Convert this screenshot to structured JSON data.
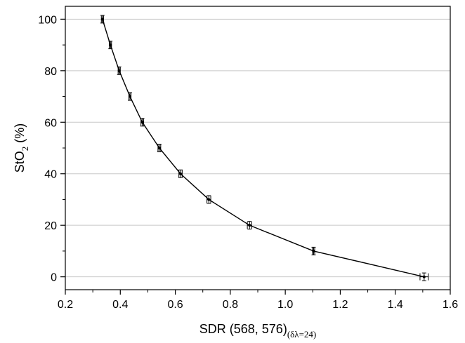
{
  "chart_data": {
    "type": "line",
    "xlabel": {
      "main": "SDR (568, 576)",
      "subscript": "(δλ=24)"
    },
    "ylabel": {
      "pre": "StO",
      "subscript": "2",
      "post": " (%)"
    },
    "xlim": [
      0.2,
      1.6
    ],
    "ylim": [
      -5,
      105
    ],
    "x_ticks": [
      "0.2",
      "0.4",
      "0.6",
      "0.8",
      "1.0",
      "1.2",
      "1.4",
      "1.6"
    ],
    "y_ticks": [
      "0",
      "20",
      "40",
      "60",
      "80",
      "100"
    ],
    "grid": "horizontal",
    "series": [
      {
        "x": [
          0.335,
          0.364,
          0.396,
          0.435,
          0.48,
          0.542,
          0.619,
          0.722,
          0.87,
          1.103,
          1.505
        ],
        "y": [
          100,
          90,
          80,
          70,
          60,
          50,
          40,
          30,
          20,
          10,
          0
        ],
        "x_err": [
          0.004,
          0.004,
          0.004,
          0.004,
          0.005,
          0.005,
          0.006,
          0.007,
          0.008,
          0.004,
          0.015
        ],
        "y_err": [
          1.5,
          1.5,
          1.5,
          1.5,
          1.5,
          1.5,
          1.5,
          1.5,
          1.5,
          1.5,
          1.5
        ]
      }
    ]
  },
  "colors": {
    "line": "#000000",
    "grid": "#c8c8c8",
    "frame": "#000000"
  }
}
